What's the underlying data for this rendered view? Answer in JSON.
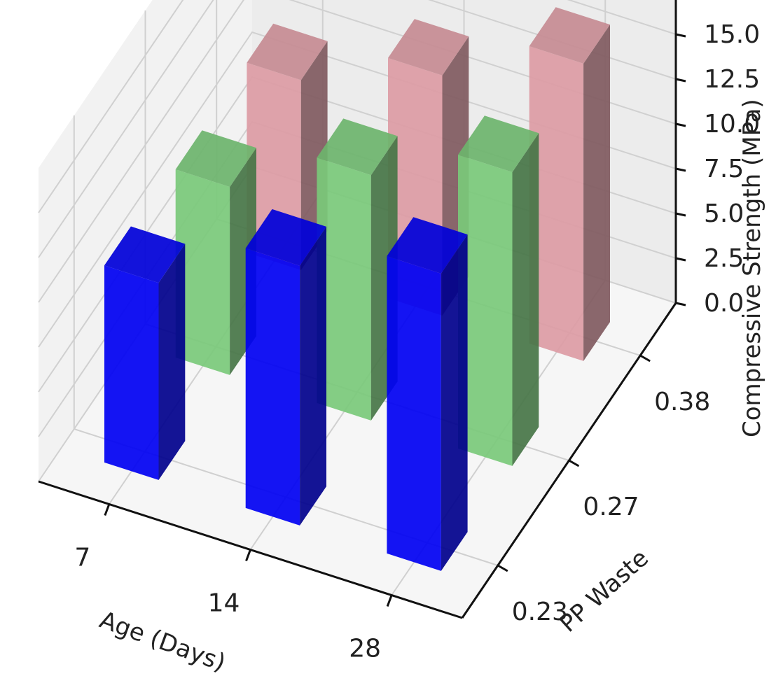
{
  "chart_data": {
    "type": "bar3d",
    "xlabel": "Age (Days)",
    "ylabel": "PP Waste",
    "zlabel": "Compressive Strength (MPa)",
    "x_categories": [
      "7",
      "14",
      "28"
    ],
    "y_categories": [
      "0.23",
      "0.27",
      "0.38"
    ],
    "z_ticks": [
      "0.0",
      "2.5",
      "5.0",
      "7.5",
      "10.0",
      "12.5",
      "15.0"
    ],
    "zlim": [
      0,
      17.5
    ],
    "grid": true,
    "series": [
      {
        "pp_waste": "0.23",
        "color": "#0000ff",
        "values": [
          11.0,
          14.5,
          16.6
        ]
      },
      {
        "pp_waste": "0.27",
        "color": "#7fd47f",
        "values": [
          10.5,
          13.7,
          16.4
        ]
      },
      {
        "pp_waste": "0.38",
        "color": "#e8a3ad",
        "values": [
          10.6,
          13.4,
          16.6
        ]
      }
    ]
  }
}
